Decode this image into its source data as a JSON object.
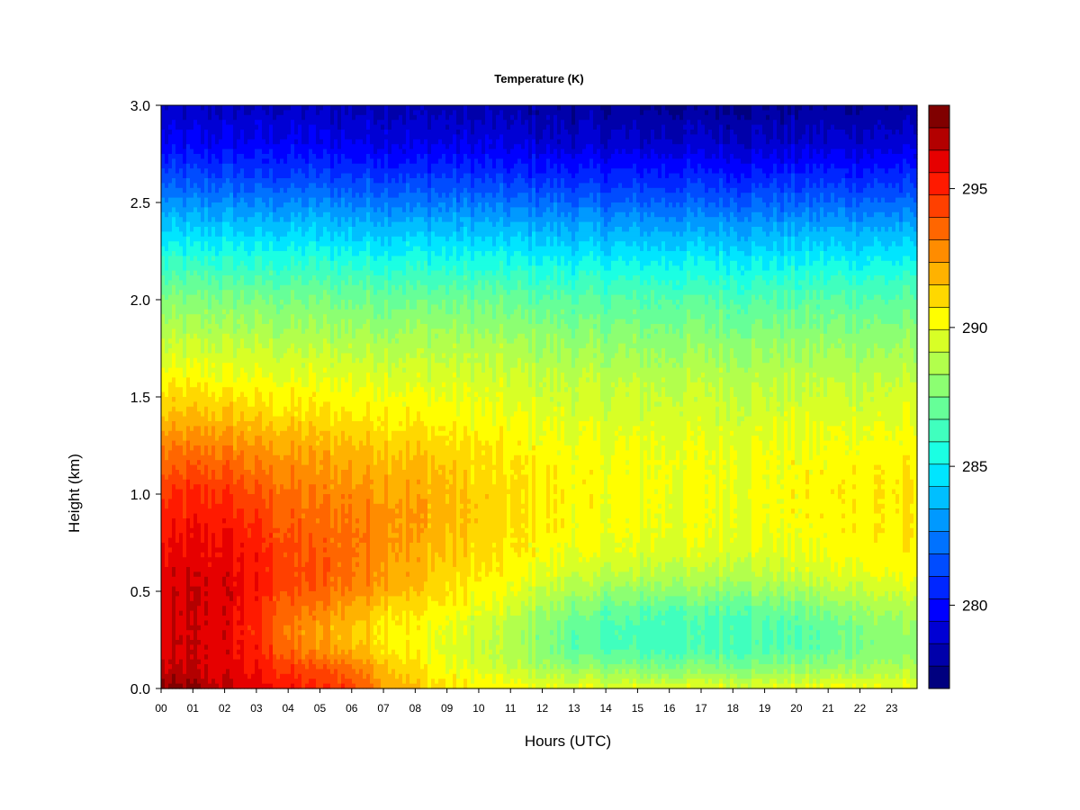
{
  "chart_data": {
    "type": "heatmap",
    "title": "Temperature (K)",
    "xlabel": "Hours (UTC)",
    "ylabel": "Height (km)",
    "x_ticks": [
      "00",
      "01",
      "02",
      "03",
      "04",
      "05",
      "06",
      "07",
      "08",
      "09",
      "10",
      "11",
      "12",
      "13",
      "14",
      "15",
      "16",
      "17",
      "18",
      "19",
      "20",
      "21",
      "22",
      "23"
    ],
    "y_ticks": [
      "0.0",
      "0.5",
      "1.0",
      "1.5",
      "2.0",
      "2.5",
      "3.0"
    ],
    "xlim": [
      0,
      23.8
    ],
    "ylim": [
      0,
      3.0
    ],
    "colorbar": {
      "range": [
        277,
        298
      ],
      "ticks": [
        280,
        285,
        290,
        295
      ],
      "levels": 21,
      "colors": [
        "#00007F",
        "#0000AA",
        "#0000D4",
        "#0000FF",
        "#0026FF",
        "#004CFF",
        "#0072FF",
        "#0099FF",
        "#00BFFF",
        "#00E5FF",
        "#1BFFE3",
        "#40FFBE",
        "#66FF98",
        "#8CFF72",
        "#B2FF4C",
        "#D8FF26",
        "#FFFE00",
        "#FFD800",
        "#FFB200",
        "#FF8C00",
        "#FF6600",
        "#FF4000",
        "#FF1A00",
        "#E60000",
        "#B30000",
        "#800000"
      ]
    },
    "x": [
      0,
      1,
      2,
      3,
      4,
      5,
      6,
      7,
      8,
      9,
      10,
      11,
      12,
      13,
      14,
      15,
      16,
      17,
      18,
      19,
      20,
      21,
      22,
      23,
      23.8
    ],
    "y": [
      0.0,
      0.1,
      0.2,
      0.3,
      0.4,
      0.5,
      0.6,
      0.7,
      0.8,
      0.9,
      1.0,
      1.2,
      1.4,
      1.6,
      1.8,
      2.0,
      2.2,
      2.4,
      2.6,
      2.8,
      3.0
    ],
    "z": [
      [
        297.5,
        297.3,
        296.6,
        296.0,
        295.3,
        294.8,
        294.6,
        292.5,
        291.5,
        290.8,
        290.4,
        290.2,
        290.0,
        289.9,
        289.8,
        289.7,
        289.7,
        289.8,
        289.8,
        289.8,
        289.9,
        290.0,
        290.1,
        290.0,
        289.9
      ],
      [
        296.3,
        296.3,
        296.0,
        295.4,
        294.6,
        294.0,
        293.5,
        292.0,
        290.8,
        290.1,
        289.6,
        289.2,
        288.6,
        288.2,
        288.0,
        287.8,
        287.8,
        287.8,
        287.8,
        287.9,
        288.0,
        288.2,
        288.5,
        288.6,
        288.6
      ],
      [
        296.0,
        296.2,
        296.0,
        295.2,
        293.5,
        292.5,
        292.0,
        291.0,
        290.3,
        289.6,
        289.1,
        288.5,
        287.8,
        287.0,
        286.6,
        286.4,
        286.4,
        286.5,
        286.6,
        286.7,
        286.8,
        287.0,
        287.6,
        287.8,
        287.8
      ],
      [
        296.0,
        296.2,
        296.0,
        294.8,
        293.0,
        292.2,
        291.6,
        290.8,
        290.3,
        289.8,
        289.3,
        288.7,
        287.9,
        287.0,
        286.5,
        286.3,
        286.3,
        286.4,
        286.5,
        286.6,
        286.8,
        287.0,
        287.8,
        288.0,
        288.0
      ],
      [
        296.0,
        296.3,
        296.1,
        295.0,
        293.5,
        292.8,
        292.2,
        291.3,
        290.8,
        290.3,
        289.8,
        289.2,
        288.4,
        287.6,
        287.0,
        286.8,
        286.8,
        286.8,
        286.9,
        287.0,
        287.2,
        287.5,
        288.3,
        288.5,
        288.5
      ],
      [
        296.0,
        296.3,
        296.2,
        295.3,
        294.0,
        293.6,
        293.0,
        292.3,
        291.5,
        290.9,
        290.4,
        289.9,
        289.2,
        288.6,
        288.2,
        288.0,
        288.0,
        288.0,
        288.0,
        288.2,
        288.4,
        288.7,
        289.3,
        289.4,
        289.4
      ],
      [
        295.8,
        296.0,
        296.0,
        295.3,
        294.2,
        293.9,
        293.4,
        292.6,
        291.9,
        291.2,
        290.7,
        290.3,
        289.8,
        289.4,
        289.1,
        289.0,
        289.0,
        288.9,
        289.0,
        289.1,
        289.3,
        289.6,
        290.0,
        290.1,
        290.1
      ],
      [
        295.5,
        295.8,
        295.8,
        295.1,
        294.1,
        293.8,
        293.5,
        292.8,
        292.1,
        291.5,
        291.0,
        290.6,
        290.2,
        289.9,
        289.7,
        289.6,
        289.6,
        289.6,
        289.6,
        289.7,
        289.8,
        290.0,
        290.4,
        290.4,
        290.4
      ],
      [
        295.3,
        295.5,
        295.5,
        294.8,
        293.9,
        293.6,
        293.4,
        292.9,
        292.3,
        291.7,
        291.2,
        290.8,
        290.5,
        290.2,
        290.0,
        289.9,
        289.9,
        289.9,
        289.9,
        290.0,
        290.1,
        290.3,
        290.6,
        290.6,
        290.6
      ],
      [
        295.0,
        295.2,
        295.2,
        294.5,
        293.6,
        293.3,
        293.1,
        292.8,
        292.4,
        291.8,
        291.3,
        290.9,
        290.6,
        290.3,
        290.1,
        290.0,
        290.0,
        290.0,
        290.0,
        290.1,
        290.2,
        290.3,
        290.6,
        290.6,
        290.6
      ],
      [
        294.5,
        294.8,
        294.8,
        294.0,
        293.3,
        293.0,
        292.8,
        292.5,
        292.2,
        291.8,
        291.3,
        290.9,
        290.6,
        290.4,
        290.2,
        290.1,
        290.1,
        290.1,
        290.1,
        290.2,
        290.3,
        290.5,
        290.7,
        290.7,
        290.7
      ],
      [
        293.2,
        293.4,
        293.3,
        292.8,
        292.4,
        292.2,
        292.0,
        291.8,
        291.5,
        291.2,
        290.9,
        290.6,
        290.4,
        290.2,
        290.0,
        290.0,
        290.0,
        290.0,
        290.0,
        290.1,
        290.1,
        290.2,
        290.4,
        290.4,
        290.4
      ],
      [
        291.6,
        291.7,
        291.6,
        291.3,
        291.0,
        290.9,
        290.8,
        290.7,
        290.5,
        290.3,
        290.1,
        289.9,
        289.8,
        289.6,
        289.5,
        289.5,
        289.5,
        289.5,
        289.5,
        289.5,
        289.6,
        289.6,
        289.7,
        289.7,
        289.7
      ],
      [
        290.2,
        290.2,
        290.1,
        290.0,
        289.9,
        289.8,
        289.8,
        289.7,
        289.6,
        289.5,
        289.4,
        289.3,
        289.1,
        289.0,
        288.9,
        288.9,
        288.9,
        288.9,
        288.9,
        288.9,
        288.9,
        289.0,
        289.0,
        289.0,
        289.0
      ],
      [
        288.9,
        288.9,
        288.9,
        288.8,
        288.7,
        288.7,
        288.7,
        288.6,
        288.6,
        288.5,
        288.4,
        288.3,
        288.1,
        288.0,
        287.9,
        287.9,
        287.9,
        287.9,
        287.9,
        287.9,
        287.9,
        288.0,
        288.0,
        288.0,
        288.0
      ],
      [
        287.6,
        287.6,
        287.6,
        287.5,
        287.5,
        287.5,
        287.4,
        287.4,
        287.3,
        287.3,
        287.2,
        287.1,
        286.9,
        286.8,
        286.7,
        286.7,
        286.7,
        286.7,
        286.7,
        286.7,
        286.7,
        286.8,
        286.8,
        286.8,
        286.8
      ],
      [
        285.8,
        285.8,
        285.8,
        285.7,
        285.7,
        285.7,
        285.6,
        285.6,
        285.5,
        285.5,
        285.4,
        285.3,
        285.2,
        285.1,
        285.0,
        285.0,
        285.0,
        285.0,
        285.0,
        285.0,
        285.0,
        285.1,
        285.1,
        285.1,
        285.1
      ],
      [
        283.8,
        283.8,
        283.8,
        283.7,
        283.7,
        283.7,
        283.6,
        283.6,
        283.5,
        283.5,
        283.4,
        283.3,
        283.2,
        283.1,
        283.0,
        283.0,
        283.0,
        283.0,
        283.0,
        283.0,
        283.0,
        283.1,
        283.1,
        283.1,
        283.1
      ],
      [
        281.6,
        281.6,
        281.6,
        281.5,
        281.5,
        281.5,
        281.4,
        281.4,
        281.3,
        281.3,
        281.2,
        281.1,
        281.0,
        280.9,
        280.8,
        280.8,
        280.8,
        280.8,
        280.8,
        280.8,
        280.8,
        280.9,
        280.9,
        280.9,
        280.9
      ],
      [
        279.7,
        279.7,
        279.7,
        279.6,
        279.6,
        279.6,
        279.5,
        279.5,
        279.4,
        279.4,
        279.3,
        279.2,
        279.1,
        279.0,
        278.9,
        278.9,
        278.9,
        278.9,
        278.9,
        278.9,
        278.9,
        279.0,
        279.0,
        279.0,
        279.0
      ],
      [
        278.6,
        278.6,
        278.6,
        278.5,
        278.5,
        278.5,
        278.4,
        278.4,
        278.3,
        278.3,
        278.2,
        278.1,
        278.0,
        277.9,
        277.8,
        277.8,
        277.8,
        277.8,
        277.8,
        277.8,
        277.8,
        277.9,
        277.9,
        277.9,
        277.9
      ]
    ]
  }
}
